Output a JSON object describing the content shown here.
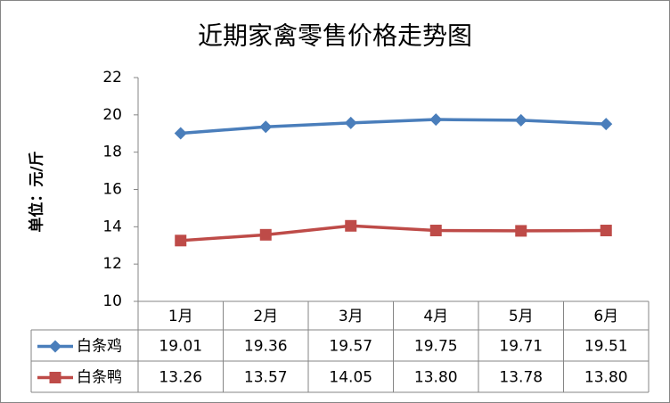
{
  "chart_data": {
    "type": "line",
    "title": "近期家禽零售价格走势图",
    "y_label": "单位：元/斤",
    "categories": [
      "1月",
      "2月",
      "3月",
      "4月",
      "5月",
      "6月"
    ],
    "series": [
      {
        "name": "白条鸡",
        "color": "#4a7ebb",
        "marker": "diamond",
        "values": [
          19.01,
          19.36,
          19.57,
          19.75,
          19.71,
          19.51
        ],
        "value_labels": [
          "19.01",
          "19.36",
          "19.57",
          "19.75",
          "19.71",
          "19.51"
        ]
      },
      {
        "name": "白条鸭",
        "color": "#be4b48",
        "marker": "square",
        "values": [
          13.26,
          13.57,
          14.05,
          13.8,
          13.78,
          13.8
        ],
        "value_labels": [
          "13.26",
          "13.57",
          "14.05",
          "13.80",
          "13.78",
          "13.80"
        ]
      }
    ],
    "ylim": [
      10,
      22
    ],
    "yticks": [
      10,
      12,
      14,
      16,
      18,
      20,
      22
    ],
    "grid": false
  }
}
